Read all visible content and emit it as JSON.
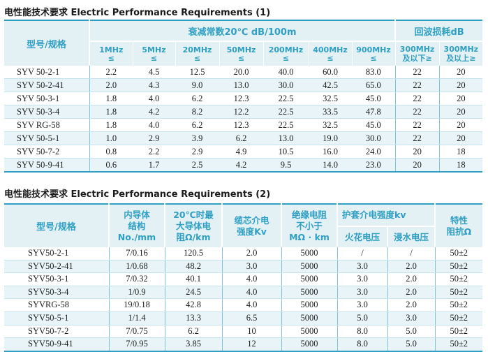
{
  "table1": {
    "title": "电性能技术要求 Electric Performance Requirements (1)",
    "model_header": "型号/规格",
    "attenuation_header": "衰减常数20℃ dB/100m",
    "return_loss_header": "回波损耗dB",
    "freq_cols": [
      {
        "freq": "1MHz",
        "cmp": "≤"
      },
      {
        "freq": "5MHz",
        "cmp": "≤"
      },
      {
        "freq": "20MHz",
        "cmp": "≤"
      },
      {
        "freq": "50MHz",
        "cmp": "≤"
      },
      {
        "freq": "200MHz",
        "cmp": "≤"
      },
      {
        "freq": "400MHz",
        "cmp": "≤"
      },
      {
        "freq": "900MHz",
        "cmp": "≤"
      }
    ],
    "rl_cols": [
      {
        "line1": "300MHz",
        "line2": "及以下≥"
      },
      {
        "line1": "300MHz",
        "line2": "及以上≥"
      }
    ],
    "rows": [
      {
        "model": "SYV 50-2-1",
        "v": [
          "2.2",
          "4.5",
          "12.5",
          "20.0",
          "40.0",
          "60.0",
          "83.0",
          "22",
          "20"
        ]
      },
      {
        "model": "SYV 50-2-41",
        "v": [
          "2.0",
          "4.3",
          "9.0",
          "13.0",
          "30.0",
          "42.5",
          "65.0",
          "22",
          "20"
        ]
      },
      {
        "model": "SYV 50-3-1",
        "v": [
          "1.8",
          "4.0",
          "6.2",
          "12.3",
          "22.5",
          "32.5",
          "45.0",
          "22",
          "20"
        ]
      },
      {
        "model": "SYV 50-3-4",
        "v": [
          "1.8",
          "4.2",
          "8.2",
          "12.2",
          "22.5",
          "33.5",
          "47.8",
          "22",
          "20"
        ]
      },
      {
        "model": "SYV RG-58",
        "v": [
          "1.8",
          "4.0",
          "6.2",
          "12.3",
          "22.5",
          "32.5",
          "45.0",
          "22",
          "20"
        ]
      },
      {
        "model": "SYV 50-5-1",
        "v": [
          "1.0",
          "2.9",
          "3.9",
          "6.2",
          "13.0",
          "19.0",
          "30.0",
          "22",
          "20"
        ]
      },
      {
        "model": "SYV 50-7-2",
        "v": [
          "0.8",
          "2.2",
          "2.9",
          "4.9",
          "10.5",
          "16.0",
          "24.0",
          "20",
          "18"
        ]
      },
      {
        "model": "SYV 50-9-41",
        "v": [
          "0.6",
          "1.7",
          "2.5",
          "4.2",
          "9.5",
          "14.0",
          "23.0",
          "20",
          "18"
        ]
      }
    ]
  },
  "table2": {
    "title": "电性能技术要求 Electric Performance Requirements (2)",
    "headers": {
      "model": "型号/规格",
      "inner": [
        "内导体",
        "结构",
        "No./mm"
      ],
      "resistance": [
        "20℃时最",
        "大导体电",
        "阻Ω/km"
      ],
      "core": [
        "缆芯介电",
        "强度Kv"
      ],
      "insulation": [
        "绝缘电阻",
        "不小于",
        "MΩ · km"
      ],
      "jacket": "护套介电强度kv",
      "spark": "火花电压",
      "immersion": "浸水电压",
      "impedance": [
        "特性",
        "阻抗Ω"
      ]
    },
    "rows": [
      {
        "model": "SYV50-2-1",
        "v": [
          "7/0.16",
          "120.5",
          "2.0",
          "5000",
          "/",
          "/",
          "50±2"
        ]
      },
      {
        "model": "SYV50-2-41",
        "v": [
          "1/0.68",
          "48.2",
          "3.0",
          "5000",
          "3.0",
          "2.0",
          "50±2"
        ]
      },
      {
        "model": "SYV50-3-1",
        "v": [
          "7/0.32",
          "40.1",
          "4.0",
          "5000",
          "3.0",
          "2.0",
          "50±2"
        ]
      },
      {
        "model": "SYV50-3-4",
        "v": [
          "1/0.9",
          "24.5",
          "4.0",
          "5000",
          "3.0",
          "2.0",
          "50±2"
        ]
      },
      {
        "model": "SYVRG-58",
        "v": [
          "19/0.18",
          "42.8",
          "4.0",
          "5000",
          "3.0",
          "2.0",
          "50±2"
        ]
      },
      {
        "model": "SYV50-5-1",
        "v": [
          "1/1.4",
          "13.3",
          "6.5",
          "5000",
          "5.0",
          "3.0",
          "50±2"
        ]
      },
      {
        "model": "SYV50-7-2",
        "v": [
          "7/0.75",
          "6.2",
          "10",
          "5000",
          "8.0",
          "5.0",
          "50±2"
        ]
      },
      {
        "model": "SYV50-9-41",
        "v": [
          "7/0.95",
          "3.85",
          "12",
          "5000",
          "8.0",
          "5.0",
          "50±2"
        ]
      }
    ]
  },
  "colors": {
    "accent": "#2f9fc3",
    "header_bg": "#e3f1f5",
    "row_alt": "#e8f4f8"
  }
}
